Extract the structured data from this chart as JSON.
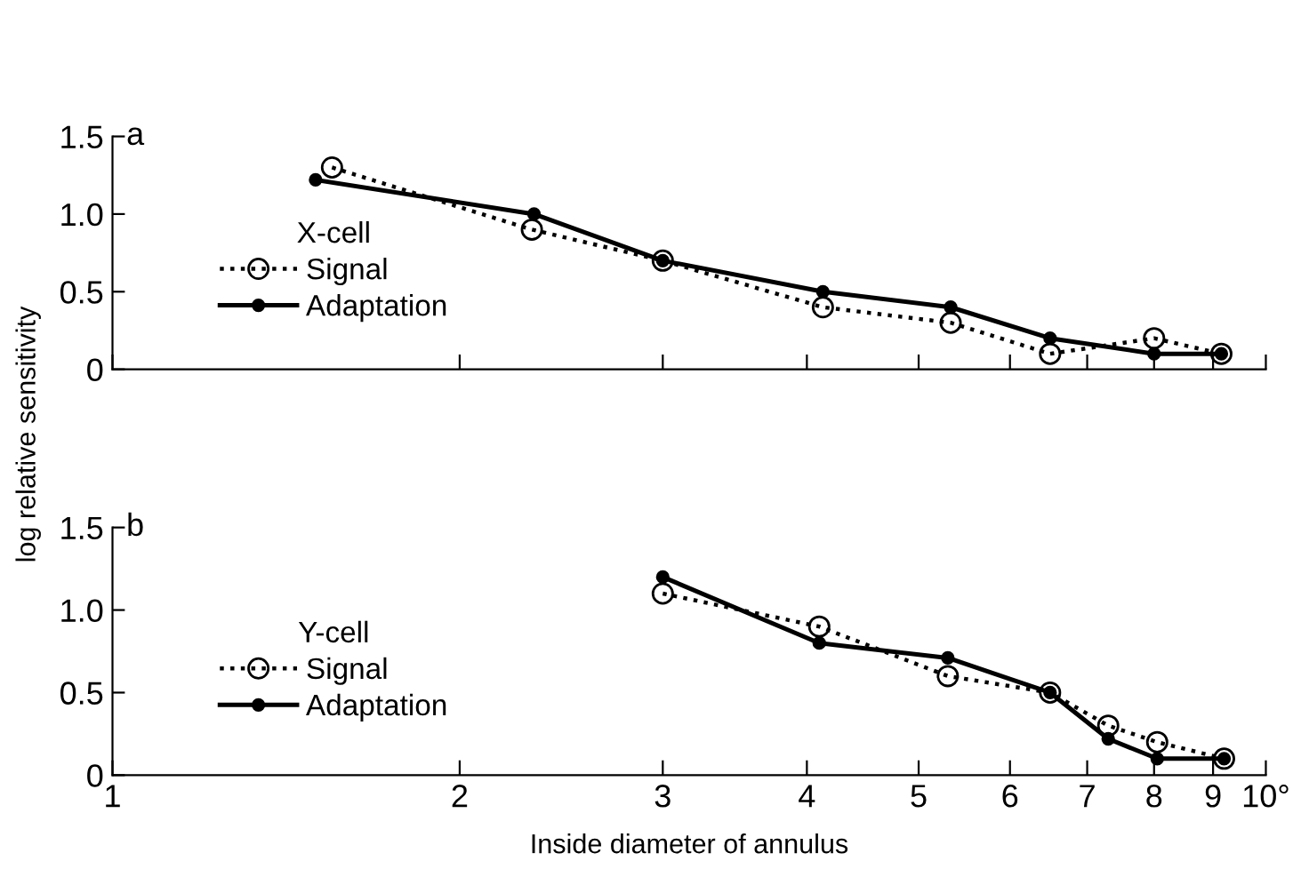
{
  "chart_data": [
    {
      "type": "line",
      "title": "a",
      "ylabel": "log relative sensitivity",
      "legend_title": "X-cell",
      "legend": "left",
      "xlim": [
        1,
        10
      ],
      "log": "x",
      "xticks": [
        {
          "value": 1,
          "label": null
        },
        {
          "value": 2,
          "label": null
        },
        {
          "value": 3,
          "label": null
        },
        {
          "value": 4,
          "label": null
        },
        {
          "value": 5,
          "label": null
        },
        {
          "value": 6,
          "label": null
        },
        {
          "value": 7,
          "label": null
        },
        {
          "value": 8,
          "label": null
        },
        {
          "value": 9,
          "label": null
        },
        {
          "value": 10,
          "label": null
        }
      ],
      "tick_labels": "y",
      "ylim": [
        0,
        1.5
      ],
      "yticks": [
        0,
        {
          "value": 0.5,
          "label": "0.5"
        },
        {
          "value": 1.0,
          "label": "1.0"
        },
        {
          "value": 1.5,
          "label": "1.5"
        }
      ],
      "grid": false,
      "marker": "circle",
      "series": [
        {
          "name": "Signal",
          "color": "#000000",
          "line_style": "dotted",
          "x": [
            1.55,
            2.31,
            3.0,
            4.13,
            5.33,
            6.5,
            8.0,
            9.15
          ],
          "values": [
            1.3,
            0.9,
            0.7,
            0.4,
            0.3,
            0.1,
            0.2,
            0.1
          ]
        },
        {
          "name": "Adaptation",
          "color": "#000000",
          "line_style": "solid",
          "x": [
            1.5,
            2.32,
            3.0,
            4.13,
            5.33,
            6.5,
            8.0,
            9.15
          ],
          "values": [
            1.22,
            1.0,
            0.7,
            0.5,
            0.4,
            0.2,
            0.1,
            0.1
          ]
        }
      ]
    },
    {
      "type": "line",
      "title": "b",
      "xlabel": "Inside diameter of annulus",
      "legend_title": "Y-cell",
      "legend": "left",
      "xlim": [
        1,
        10
      ],
      "log": "x",
      "xticks": [
        1,
        2,
        3,
        4,
        5,
        6,
        7,
        8,
        9,
        {
          "value": 10,
          "label": "10°"
        }
      ],
      "ylim": [
        0,
        1.5
      ],
      "yticks": [
        0,
        {
          "value": 0.5,
          "label": "0.5"
        },
        {
          "value": 1.0,
          "label": "1.0"
        },
        {
          "value": 1.5,
          "label": "1.5"
        }
      ],
      "grid": false,
      "marker": "circle",
      "series": [
        {
          "name": "Signal",
          "color": "#000000",
          "line_style": "dotted",
          "x": [
            3.0,
            4.1,
            5.3,
            6.5,
            7.3,
            8.05,
            9.2
          ],
          "values": [
            1.1,
            0.9,
            0.6,
            0.5,
            0.3,
            0.2,
            0.1
          ]
        },
        {
          "name": "Adaptation",
          "color": "#000000",
          "line_style": "solid",
          "x": [
            3.0,
            4.1,
            5.3,
            6.5,
            7.3,
            8.05,
            9.2
          ],
          "values": [
            1.2,
            0.8,
            0.71,
            0.5,
            0.22,
            0.1,
            0.1
          ]
        }
      ]
    }
  ]
}
